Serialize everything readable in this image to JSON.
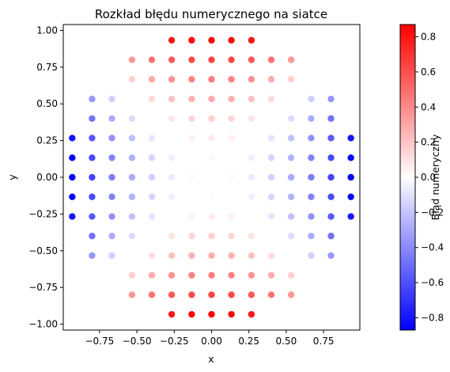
{
  "chart_data": {
    "type": "scatter",
    "title": "Rozkład błędu numerycznego na siatce",
    "xlabel": "x",
    "ylabel": "y",
    "xlim": [
      -0.993,
      0.993
    ],
    "ylim": [
      -1.04,
      1.04
    ],
    "xticks": [
      -0.75,
      -0.5,
      -0.25,
      0.0,
      0.25,
      0.5,
      0.75
    ],
    "xtick_labels": [
      "−0.75",
      "−0.50",
      "−0.25",
      "0.00",
      "0.25",
      "0.50",
      "0.75"
    ],
    "yticks": [
      -1.0,
      -0.75,
      -0.5,
      -0.25,
      0.0,
      0.25,
      0.5,
      0.75,
      1.0
    ],
    "ytick_labels": [
      "−1.00",
      "−0.75",
      "−0.50",
      "−0.25",
      "0.00",
      "0.25",
      "0.50",
      "0.75",
      "1.00"
    ],
    "grid": false,
    "colorbar": {
      "label": "Błąd numeryczny",
      "colormap": "bwr",
      "range": [
        -0.87,
        0.87
      ],
      "ticks": [
        -0.8,
        -0.6,
        -0.4,
        -0.2,
        0.0,
        0.2,
        0.4,
        0.6,
        0.8
      ],
      "tick_labels": [
        "−0.8",
        "−0.6",
        "−0.4",
        "−0.2",
        "0.0",
        "0.2",
        "0.4",
        "0.6",
        "0.8"
      ]
    },
    "grid_points": {
      "x": [
        -0.933,
        -0.8,
        -0.667,
        -0.533,
        -0.4,
        -0.267,
        -0.133,
        0.0,
        0.133,
        0.267,
        0.4,
        0.533,
        0.667,
        0.8,
        0.933
      ],
      "y": [
        -0.933,
        -0.8,
        -0.667,
        -0.533,
        -0.4,
        -0.267,
        -0.133,
        0.0,
        0.133,
        0.267,
        0.4,
        0.533,
        0.667,
        0.8,
        0.933
      ],
      "domain": "x^2 + y^2 <= 1",
      "value_model": "error = y^2 - x^2"
    },
    "colors": {
      "low": "#0000ff",
      "mid": "#ffffff",
      "high": "#ff0000"
    }
  }
}
